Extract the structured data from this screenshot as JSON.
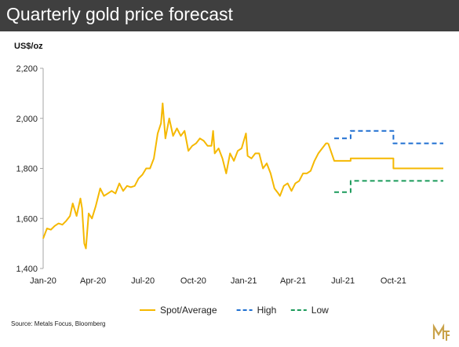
{
  "header": {
    "title": "Quarterly gold price forecast"
  },
  "source": "Source: Metals Focus, Bloomberg",
  "logo": {
    "icon": "metals-focus-logo-icon"
  },
  "colors": {
    "header_bg": "#3f3f3f",
    "spot": "#f5b800",
    "high": "#1f6fd1",
    "low": "#1a9a5a",
    "axis": "#a6a6a6"
  },
  "chart_data": {
    "type": "line",
    "ylabel": "US$/oz",
    "ylim": [
      1400,
      2200
    ],
    "yticks": [
      1400,
      1600,
      1800,
      2000,
      2200
    ],
    "ytick_labels": [
      "1,400",
      "1,600",
      "1,800",
      "2,000",
      "2,200"
    ],
    "xlim": [
      "2020-01-01",
      "2021-12-31"
    ],
    "xticks": [
      "2020-01-01",
      "2020-04-01",
      "2020-07-01",
      "2020-10-01",
      "2021-01-01",
      "2021-04-01",
      "2021-07-01",
      "2021-10-01"
    ],
    "xtick_labels": [
      "Jan-20",
      "Apr-20",
      "Jul-20",
      "Oct-20",
      "Jan-21",
      "Apr-21",
      "Jul-21",
      "Oct-21"
    ],
    "grid": false,
    "legend": "bottom",
    "series": [
      {
        "name": "Spot/Average",
        "style": "solid",
        "dates": [
          "2020-01-01",
          "2020-01-08",
          "2020-01-15",
          "2020-01-22",
          "2020-01-29",
          "2020-02-05",
          "2020-02-12",
          "2020-02-19",
          "2020-02-24",
          "2020-03-02",
          "2020-03-09",
          "2020-03-12",
          "2020-03-16",
          "2020-03-19",
          "2020-03-24",
          "2020-03-30",
          "2020-04-06",
          "2020-04-14",
          "2020-04-21",
          "2020-04-28",
          "2020-05-05",
          "2020-05-12",
          "2020-05-19",
          "2020-05-26",
          "2020-06-02",
          "2020-06-09",
          "2020-06-16",
          "2020-06-23",
          "2020-06-30",
          "2020-07-07",
          "2020-07-14",
          "2020-07-21",
          "2020-07-28",
          "2020-08-03",
          "2020-08-06",
          "2020-08-11",
          "2020-08-18",
          "2020-08-25",
          "2020-09-01",
          "2020-09-08",
          "2020-09-15",
          "2020-09-22",
          "2020-09-29",
          "2020-10-06",
          "2020-10-13",
          "2020-10-20",
          "2020-10-27",
          "2020-11-03",
          "2020-11-06",
          "2020-11-09",
          "2020-11-16",
          "2020-11-23",
          "2020-11-30",
          "2020-12-07",
          "2020-12-14",
          "2020-12-21",
          "2020-12-28",
          "2021-01-05",
          "2021-01-08",
          "2021-01-15",
          "2021-01-22",
          "2021-01-29",
          "2021-02-05",
          "2021-02-12",
          "2021-02-19",
          "2021-02-26",
          "2021-03-05",
          "2021-03-08",
          "2021-03-15",
          "2021-03-22",
          "2021-03-29",
          "2021-04-05",
          "2021-04-12",
          "2021-04-19",
          "2021-04-26",
          "2021-05-03",
          "2021-05-10",
          "2021-05-17",
          "2021-05-24",
          "2021-05-31",
          "2021-06-04"
        ],
        "values": [
          1520,
          1560,
          1555,
          1570,
          1580,
          1575,
          1590,
          1610,
          1660,
          1610,
          1680,
          1640,
          1500,
          1480,
          1620,
          1600,
          1650,
          1720,
          1690,
          1700,
          1710,
          1700,
          1740,
          1710,
          1730,
          1725,
          1730,
          1760,
          1775,
          1800,
          1800,
          1840,
          1940,
          1980,
          2060,
          1920,
          2000,
          1930,
          1960,
          1930,
          1950,
          1870,
          1890,
          1900,
          1920,
          1910,
          1890,
          1890,
          1950,
          1860,
          1880,
          1840,
          1780,
          1860,
          1830,
          1870,
          1880,
          1940,
          1850,
          1840,
          1860,
          1860,
          1800,
          1820,
          1780,
          1720,
          1700,
          1690,
          1730,
          1740,
          1710,
          1740,
          1750,
          1780,
          1780,
          1790,
          1830,
          1860,
          1880,
          1900,
          1900
        ]
      },
      {
        "name": "Spot/Average",
        "style": "forecast",
        "dates": [
          "2021-06-04",
          "2021-06-15",
          "2021-06-15",
          "2021-07-15",
          "2021-07-15",
          "2021-10-01",
          "2021-10-01",
          "2021-12-31"
        ],
        "values": [
          1900,
          1830,
          1830,
          1830,
          1840,
          1840,
          1800,
          1800
        ]
      },
      {
        "name": "High",
        "style": "dashed",
        "dates": [
          "2021-06-15",
          "2021-07-15",
          "2021-07-15",
          "2021-10-01",
          "2021-10-01",
          "2021-12-31"
        ],
        "values": [
          1920,
          1920,
          1950,
          1950,
          1900,
          1900
        ]
      },
      {
        "name": "Low",
        "style": "dashed",
        "dates": [
          "2021-06-15",
          "2021-07-15",
          "2021-07-15",
          "2021-12-31"
        ],
        "values": [
          1705,
          1705,
          1750,
          1750
        ]
      }
    ],
    "legend_entries": [
      {
        "name": "Spot/Average",
        "color": "#f5b800",
        "dash": false
      },
      {
        "name": "High",
        "color": "#1f6fd1",
        "dash": true
      },
      {
        "name": "Low",
        "color": "#1a9a5a",
        "dash": true
      }
    ]
  }
}
